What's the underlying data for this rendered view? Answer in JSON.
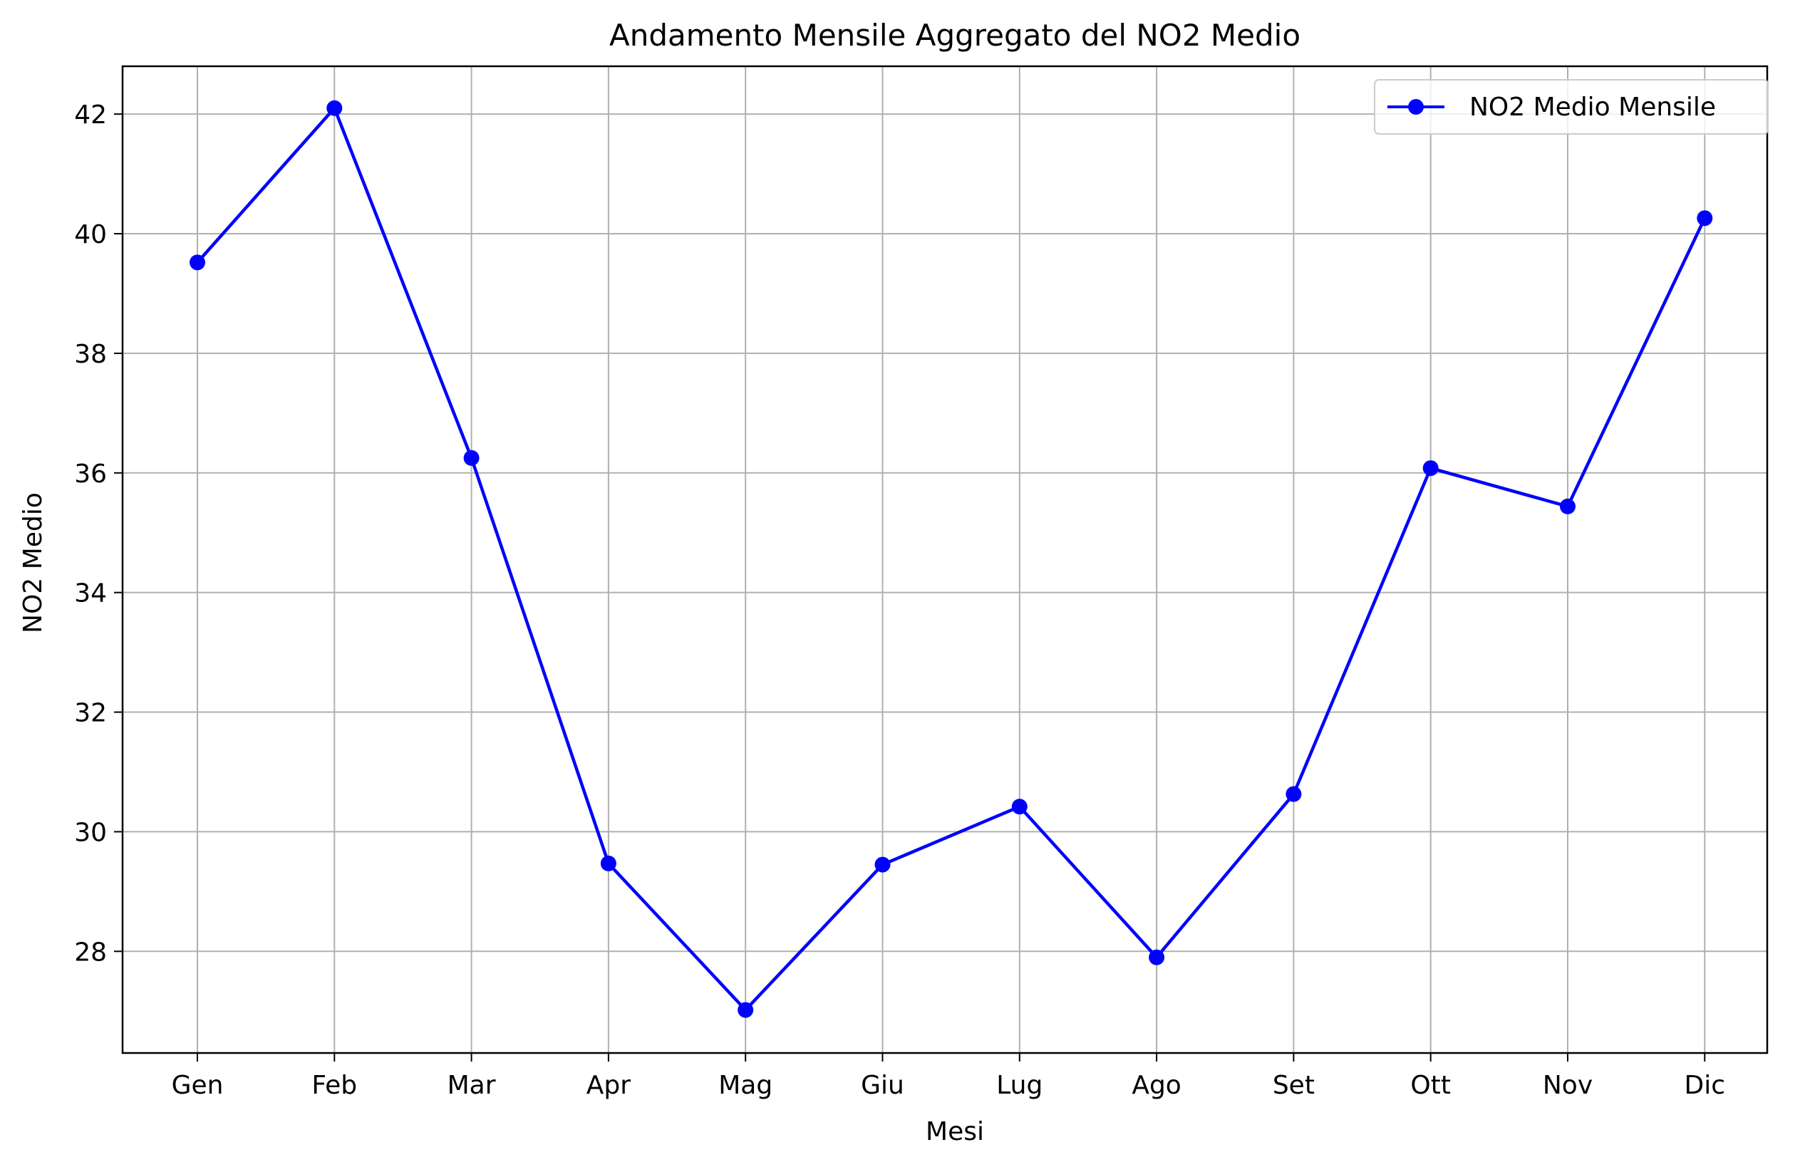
{
  "chart_data": {
    "type": "line",
    "title": "Andamento Mensile Aggregato del NO2 Medio",
    "xlabel": "Mesi",
    "ylabel": "NO2 Medio",
    "categories": [
      "Gen",
      "Feb",
      "Mar",
      "Apr",
      "Mag",
      "Giu",
      "Lug",
      "Ago",
      "Set",
      "Ott",
      "Nov",
      "Dic"
    ],
    "series": [
      {
        "name": "NO2 Medio Mensile",
        "color": "#0000ff",
        "marker": "circle",
        "values": [
          39.52,
          42.1,
          36.25,
          29.47,
          27.02,
          29.45,
          30.42,
          27.9,
          30.63,
          36.08,
          35.44,
          40.26
        ]
      }
    ],
    "ylim": [
      26.3,
      42.8
    ],
    "yticks": [
      28,
      30,
      32,
      34,
      36,
      38,
      40,
      42
    ],
    "grid": true,
    "legend_position": "top-right"
  }
}
